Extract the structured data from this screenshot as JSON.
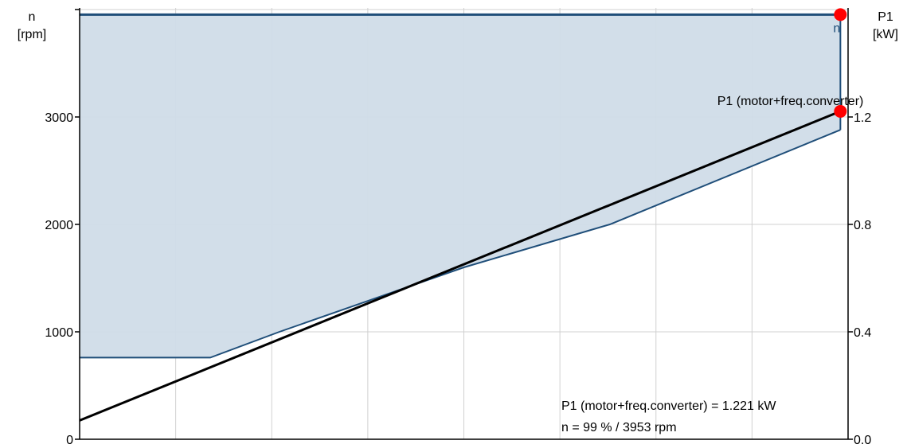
{
  "chart_data": {
    "type": "line",
    "x_axis": {
      "range": [
        0,
        100
      ],
      "gridlines": [
        0,
        12.5,
        25,
        37.5,
        50,
        62.5,
        75,
        87.5,
        100
      ]
    },
    "left_axis": {
      "title_line1": "n",
      "title_line2": "[rpm]",
      "range": [
        0,
        4000
      ],
      "ticks": [
        {
          "value": 0,
          "label": "0"
        },
        {
          "value": 1000,
          "label": "1000"
        },
        {
          "value": 2000,
          "label": "2000"
        },
        {
          "value": 3000,
          "label": "3000"
        },
        {
          "value": 4000,
          "label": ""
        }
      ]
    },
    "right_axis": {
      "title_line1": "P1",
      "title_line2": "[kW]",
      "range": [
        0.0,
        1.6
      ],
      "ticks": [
        {
          "value": 0.0,
          "label": "0.0"
        },
        {
          "value": 0.4,
          "label": "0.4"
        },
        {
          "value": 0.8,
          "label": "0.8"
        },
        {
          "value": 1.2,
          "label": "1.2"
        }
      ]
    },
    "grid": true,
    "series": [
      {
        "name": "n",
        "kind": "boundary-area",
        "color": "#1f4e79",
        "fill": "#d0dce8",
        "axis": "left",
        "upper": [
          [
            0,
            3953
          ],
          [
            99,
            3953
          ]
        ],
        "lower": [
          [
            0,
            760
          ],
          [
            17,
            760
          ],
          [
            26,
            1000
          ],
          [
            50,
            1600
          ],
          [
            69,
            2000
          ],
          [
            99,
            2880
          ]
        ]
      },
      {
        "name": "P1 (motor+freq.converter)",
        "kind": "line",
        "color": "#000000",
        "axis": "right",
        "points": [
          [
            0,
            0.07
          ],
          [
            99,
            1.221
          ]
        ]
      }
    ],
    "markers": [
      {
        "series": "n",
        "x": 99,
        "y": 3953,
        "axis": "left",
        "color": "#ff0000"
      },
      {
        "series": "P1 (motor+freq.converter)",
        "x": 99,
        "y": 1.221,
        "axis": "right",
        "color": "#ff0000"
      }
    ],
    "annotations": {
      "n_label": "n",
      "p1_label": "P1 (motor+freq.converter)",
      "readout_line1": "P1 (motor+freq.converter) = 1.221 kW",
      "readout_line2": "n = 99 % / 3953 rpm"
    }
  }
}
